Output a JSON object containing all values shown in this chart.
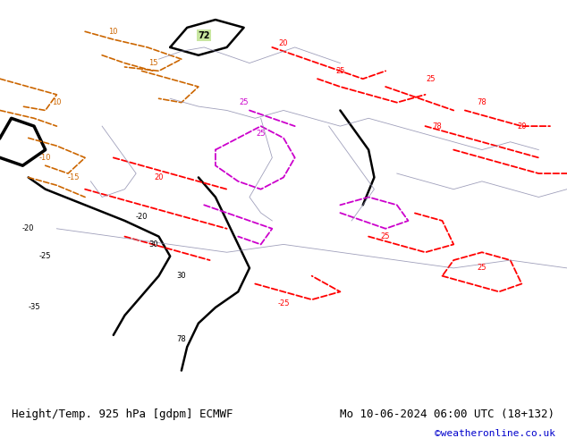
{
  "title_left": "Height/Temp. 925 hPa [gdpm] ECMWF",
  "title_right": "Mo 10-06-2024 06:00 UTC (18+132)",
  "credit": "©weatheronline.co.uk",
  "background_color": "#c8e6a0",
  "fig_width": 6.34,
  "fig_height": 4.9,
  "dpi": 100,
  "bottom_bar_color": "#ffffff",
  "bottom_bar_height": 0.1,
  "title_fontsize": 9,
  "credit_fontsize": 8,
  "credit_color": "#0000cc"
}
